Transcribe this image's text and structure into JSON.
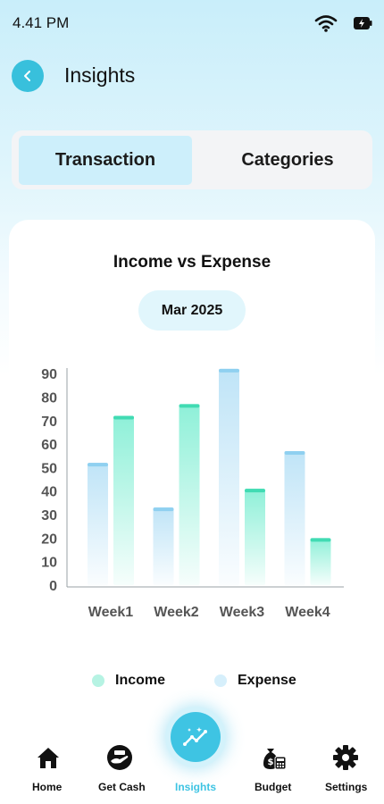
{
  "status_bar": {
    "time": "4.41 PM",
    "wifi_icon": "wifi-icon",
    "battery_icon": "battery-charging-icon"
  },
  "header": {
    "title": "Insights",
    "back_icon": "chevron-left-icon"
  },
  "segments": [
    {
      "label": "Transaction",
      "active": true
    },
    {
      "label": "Categories",
      "active": false
    }
  ],
  "card": {
    "title": "Income vs Expense",
    "month": "Mar 2025"
  },
  "chart_data": {
    "type": "bar",
    "title": "Income vs Expense",
    "categories": [
      "Week1",
      "Week2",
      "Week3",
      "Week4"
    ],
    "series": [
      {
        "name": "Expense",
        "values": [
          52,
          33,
          92,
          57
        ],
        "color": "#bfe4f7"
      },
      {
        "name": "Income",
        "values": [
          72,
          77,
          41,
          20
        ],
        "color": "#8ef0d8"
      }
    ],
    "yticks": [
      0,
      10,
      20,
      30,
      40,
      50,
      60,
      70,
      80,
      90
    ],
    "ylim": [
      0,
      95
    ],
    "grid": false,
    "legend_position": "bottom"
  },
  "legend": [
    {
      "label": "Income",
      "color": "#b6f3e3"
    },
    {
      "label": "Expense",
      "color": "#d6effb"
    }
  ],
  "tabbar": {
    "items": [
      {
        "label": "Home",
        "icon": "home-icon"
      },
      {
        "label": "Get Cash",
        "icon": "cash-hand-icon"
      },
      {
        "label": "Insights",
        "icon": "trend-chart-icon",
        "active": true
      },
      {
        "label": "Budget",
        "icon": "money-bag-calculator-icon"
      },
      {
        "label": "Settings",
        "icon": "gear-icon"
      }
    ]
  },
  "colors": {
    "accent": "#3ec4e3",
    "active_tab_text": "#3ec4e3",
    "income": "#8ef0d8",
    "expense": "#bfe4f7"
  }
}
